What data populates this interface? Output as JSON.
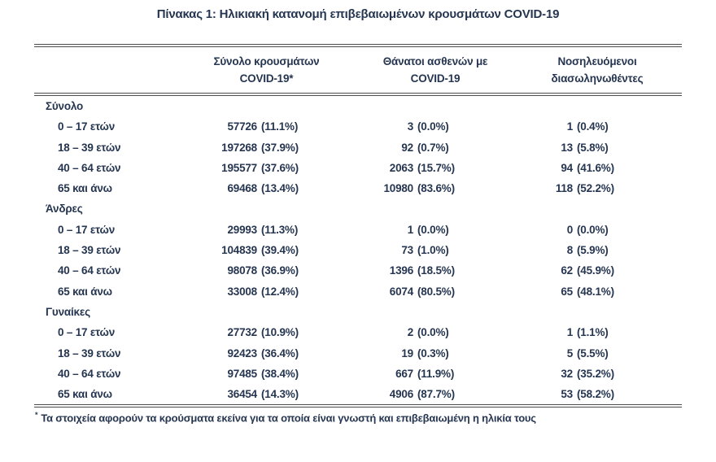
{
  "title": "Πίνακας 1: Ηλικιακή κατανομή επιβεβαιωμένων κρουσμάτων COVID-19",
  "table": {
    "headers": [
      {
        "line1": "Σύνολο κρουσμάτων",
        "line2": "COVID-19*"
      },
      {
        "line1": "Θάνατοι ασθενών με",
        "line2": "COVID-19"
      },
      {
        "line1": "Νοσηλευόμενοι",
        "line2": "διασωληνωθέντες"
      }
    ],
    "sections": [
      {
        "label": "Σύνολο",
        "rows": [
          {
            "label": "0 – 17 ετών",
            "cases": "57726 (11.1%)",
            "deaths": "3 (0.0%)",
            "intubated": "1 (0.4%)"
          },
          {
            "label": "18 – 39 ετών",
            "cases": "197268 (37.9%)",
            "deaths": "92 (0.7%)",
            "intubated": "13 (5.8%)"
          },
          {
            "label": "40 – 64 ετών",
            "cases": "195577 (37.6%)",
            "deaths": "2063 (15.7%)",
            "intubated": "94 (41.6%)"
          },
          {
            "label": "65 και άνω",
            "cases": "69468 (13.4%)",
            "deaths": "10980 (83.6%)",
            "intubated": "118 (52.2%)"
          }
        ]
      },
      {
        "label": "Άνδρες",
        "rows": [
          {
            "label": "0 – 17 ετών",
            "cases": "29993 (11.3%)",
            "deaths": "1 (0.0%)",
            "intubated": "0 (0.0%)"
          },
          {
            "label": "18 – 39 ετών",
            "cases": "104839 (39.4%)",
            "deaths": "73 (1.0%)",
            "intubated": "8 (5.9%)"
          },
          {
            "label": "40 – 64 ετών",
            "cases": "98078 (36.9%)",
            "deaths": "1396 (18.5%)",
            "intubated": "62 (45.9%)"
          },
          {
            "label": "65 και άνω",
            "cases": "33008 (12.4%)",
            "deaths": "6074 (80.5%)",
            "intubated": "65 (48.1%)"
          }
        ]
      },
      {
        "label": "Γυναίκες",
        "rows": [
          {
            "label": "0 – 17 ετών",
            "cases": "27732 (10.9%)",
            "deaths": "2 (0.0%)",
            "intubated": "1 (1.1%)"
          },
          {
            "label": "18 – 39 ετών",
            "cases": "92423 (36.4%)",
            "deaths": "19 (0.3%)",
            "intubated": "5 (5.5%)"
          },
          {
            "label": "40 – 64 ετών",
            "cases": "97485 (38.4%)",
            "deaths": "667 (11.9%)",
            "intubated": "32 (35.2%)"
          },
          {
            "label": "65 και άνω",
            "cases": "36454 (14.3%)",
            "deaths": "4906 (87.7%)",
            "intubated": "53 (58.2%)"
          }
        ]
      }
    ]
  },
  "footnote": {
    "marker": "*",
    "text": "Τα στοιχεία αφορούν τα κρούσματα εκείνα για τα οποία είναι γνωστή και επιβεβαιωμένη η ηλικία τους"
  },
  "colors": {
    "text": "#263651",
    "rule": "#4c4c4c",
    "background": "#ffffff"
  }
}
